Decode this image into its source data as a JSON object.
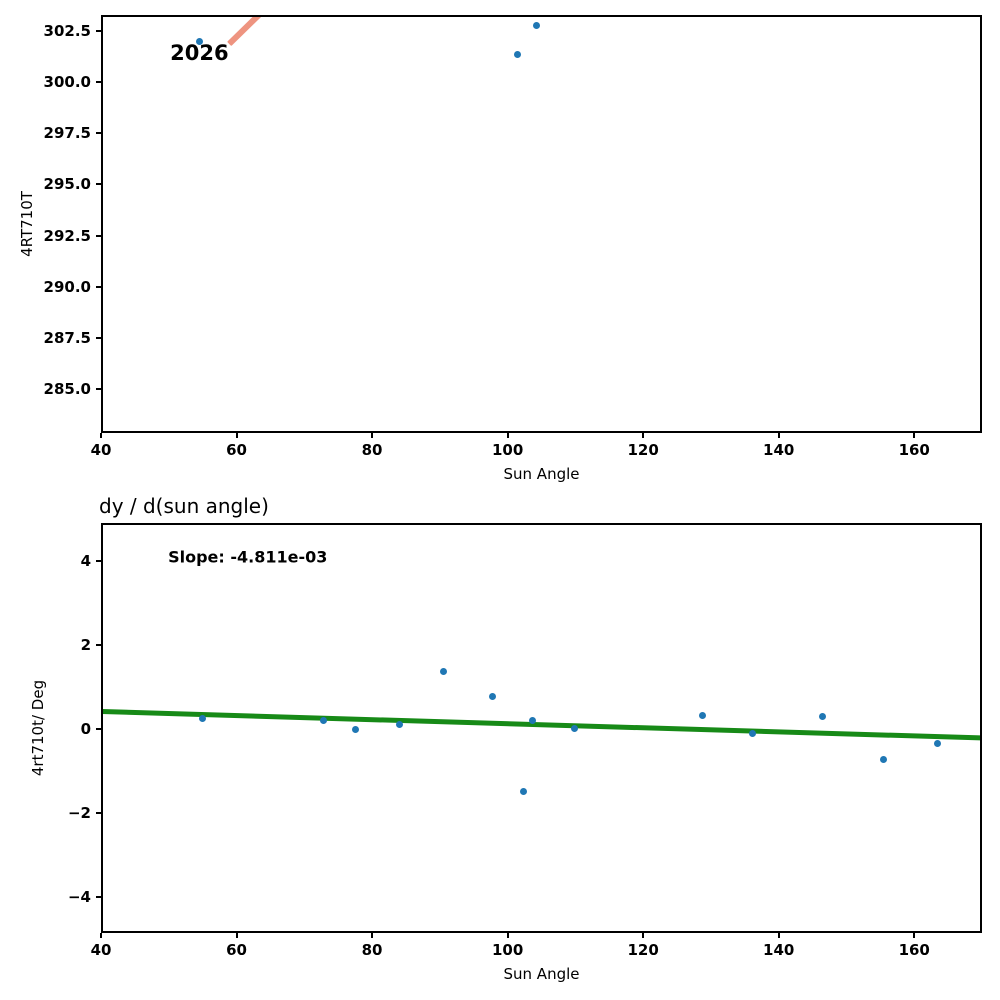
{
  "figure": {
    "background": "#ffffff",
    "marker_color": "#1f77b4",
    "top_trend_color": "#ee9480",
    "bottom_trend_color": "#178a17"
  },
  "chart_data": [
    {
      "type": "scatter",
      "title": "",
      "xlabel": "Sun Angle",
      "ylabel": "4RT710T",
      "xlim": [
        40,
        170
      ],
      "ylim": [
        282.87,
        303.27
      ],
      "grid": false,
      "legend": null,
      "xticks": [
        40,
        60,
        80,
        100,
        120,
        140,
        160
      ],
      "xtick_labels": [
        "40",
        "60",
        "80",
        "100",
        "120",
        "140",
        "160"
      ],
      "yticks": [
        285.0,
        287.5,
        290.0,
        292.5,
        295.0,
        297.5,
        300.0,
        302.5
      ],
      "ytick_labels": [
        "285.0",
        "287.5",
        "290.0",
        "292.5",
        "295.0",
        "297.5",
        "300.0",
        "302.5"
      ],
      "marker_color": "#1f77b4",
      "points": [
        [
          54.6,
          302.0
        ],
        [
          101.4,
          301.35
        ],
        [
          104.3,
          302.75
        ]
      ],
      "trend_line": {
        "color": "#ee9480",
        "width": 5.5,
        "x1": 58.9,
        "y1": 301.85,
        "x2": 63.7,
        "y2": 303.4
      },
      "annotations": [
        {
          "name": "annotation-2026",
          "text": "2026",
          "x": 50.2,
          "y": 301.4,
          "bold": true,
          "size": 21
        }
      ]
    },
    {
      "type": "scatter",
      "title": "dy / d(sun angle)",
      "xlabel": "Sun Angle",
      "ylabel": "4rt710t/ Deg",
      "xlim": [
        40,
        170
      ],
      "ylim": [
        -4.86,
        4.9
      ],
      "grid": false,
      "legend": null,
      "xticks": [
        40,
        60,
        80,
        100,
        120,
        140,
        160
      ],
      "xtick_labels": [
        "40",
        "60",
        "80",
        "100",
        "120",
        "140",
        "160"
      ],
      "yticks": [
        4,
        2,
        0,
        -2,
        -4
      ],
      "ytick_labels": [
        "4",
        "2",
        "0",
        "−2",
        "−4"
      ],
      "marker_color": "#1f77b4",
      "points": [
        [
          55.0,
          0.24
        ],
        [
          72.8,
          0.19
        ],
        [
          77.5,
          -0.02
        ],
        [
          84.1,
          0.1
        ],
        [
          90.5,
          1.36
        ],
        [
          97.7,
          0.76
        ],
        [
          102.3,
          -1.5
        ],
        [
          103.6,
          0.21
        ],
        [
          109.9,
          0.02
        ],
        [
          128.8,
          0.31
        ],
        [
          136.1,
          -0.12
        ],
        [
          146.5,
          0.29
        ],
        [
          155.4,
          -0.74
        ],
        [
          163.4,
          -0.36
        ]
      ],
      "trend_line": {
        "color": "#178a17",
        "width": 4.5,
        "x1": 40,
        "y1": 0.42,
        "x2": 170,
        "y2": -0.21
      },
      "annotations": [
        {
          "name": "annotation-slope",
          "text": "Slope: -4.811e-03",
          "x": 49.9,
          "y": 4.1,
          "bold": true,
          "size": 16
        }
      ]
    }
  ]
}
